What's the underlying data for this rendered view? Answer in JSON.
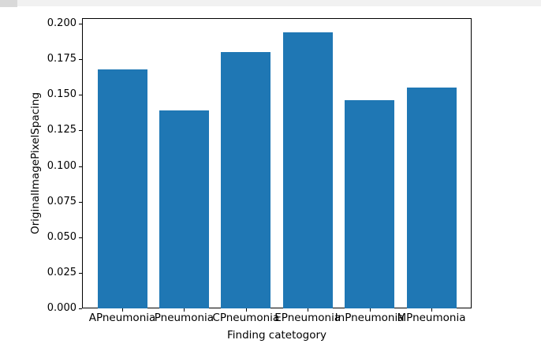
{
  "chart_data": {
    "type": "bar",
    "categories": [
      "APneumonia",
      "Pneumonia",
      "CPneumonia",
      "EPneumonia",
      "InPneumonia",
      "MPneumonia"
    ],
    "values": [
      0.168,
      0.139,
      0.18,
      0.194,
      0.146,
      0.155
    ],
    "title": "",
    "xlabel": "Finding catetogory",
    "ylabel": "OriginalImagePixelSpacing",
    "ylim": [
      0.0,
      0.2039
    ],
    "ytick_labels": [
      "0.000",
      "0.025",
      "0.050",
      "0.075",
      "0.100",
      "0.125",
      "0.150",
      "0.175",
      "0.200"
    ],
    "ytick_values": [
      0.0,
      0.025,
      0.05,
      0.075,
      0.1,
      0.125,
      0.15,
      0.175,
      0.2
    ],
    "grid": false,
    "legend": null,
    "bar_color": "#1f77b4"
  },
  "colors": {
    "bar": "#1f77b4",
    "spine": "#000000",
    "top_strip": "#f1f1f1",
    "top_strip_block": "#d9d9d9",
    "background": "#ffffff"
  }
}
